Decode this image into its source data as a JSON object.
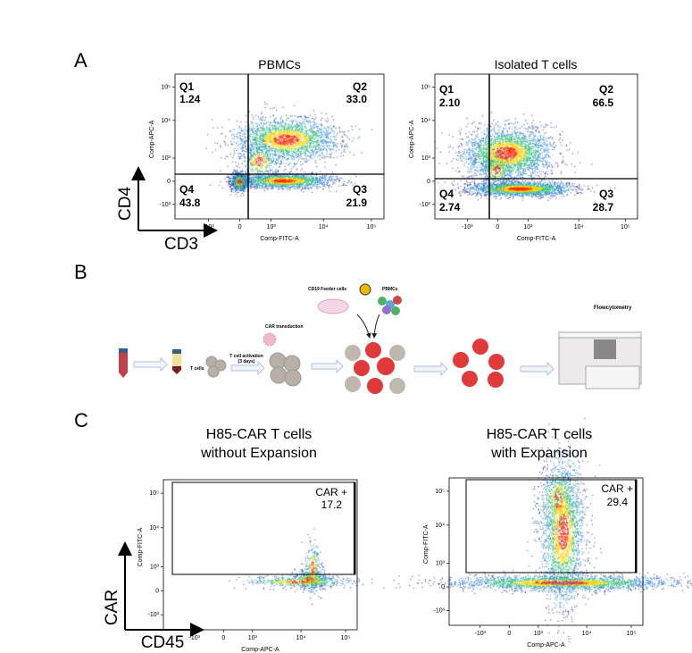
{
  "panels": {
    "a": "A",
    "b": "B",
    "c": "C"
  },
  "panel_a": {
    "marker_y": "CD4",
    "marker_x": "CD3"
  },
  "panel_b": {
    "feeder_label": "CD19 Feeder cells",
    "pbmc_label": "PBMCs",
    "car_transduction": "CAR transduction",
    "t_cells_label": "T cells",
    "activation_label": "T cell activation",
    "activation_days": "(3 days)",
    "flow_label": "Flowcytometry"
  },
  "panel_c": {
    "marker_y": "CAR",
    "marker_x": "CD45"
  },
  "chart_data": [
    {
      "type": "scatter",
      "title": "PBMCs",
      "xlabel": "Comp-FITC-A",
      "ylabel": "Comp-APC-A",
      "xticks": [
        "-10³",
        "0",
        "10³",
        "10⁴",
        "10⁵"
      ],
      "yticks": [
        "10⁵",
        "10⁴",
        "10³",
        "0",
        "-10³"
      ],
      "quadrants": [
        {
          "name": "Q1",
          "value": "1.24"
        },
        {
          "name": "Q2",
          "value": "33.0"
        },
        {
          "name": "Q3",
          "value": "21.9"
        },
        {
          "name": "Q4",
          "value": "43.8"
        }
      ]
    },
    {
      "type": "scatter",
      "title": "Isolated T cells",
      "xlabel": "Comp-FITC-A",
      "ylabel": "Comp-APC-A",
      "xticks": [
        "-10³",
        "0",
        "10³",
        "10⁴",
        "10⁵"
      ],
      "yticks": [
        "10⁵",
        "10⁴",
        "10³",
        "0",
        "-10³"
      ],
      "quadrants": [
        {
          "name": "Q1",
          "value": "2.10"
        },
        {
          "name": "Q2",
          "value": "66.5"
        },
        {
          "name": "Q3",
          "value": "28.7"
        },
        {
          "name": "Q4",
          "value": "2.74"
        }
      ]
    },
    {
      "type": "scatter",
      "title_line1": "H85-CAR T cells",
      "title_line2": "without Expansion",
      "xlabel": "Comp-APC-A",
      "ylabel": "Comp-FITC-A",
      "xticks": [
        "-10³",
        "0",
        "10³",
        "10⁴",
        "10⁵"
      ],
      "yticks": [
        "10⁵",
        "10⁴",
        "10³",
        "0",
        "-10³"
      ],
      "gate": {
        "name": "CAR +",
        "value": "17.2"
      }
    },
    {
      "type": "scatter",
      "title_line1": "H85-CAR T cells",
      "title_line2": "with Expansion",
      "xlabel": "Comp-APC-A",
      "ylabel": "Comp-FITC-A",
      "xticks": [
        "-10³",
        "0",
        "10³",
        "10⁴",
        "10⁵"
      ],
      "yticks": [
        "10⁵",
        "10⁴",
        "10³",
        "0",
        "-10³"
      ],
      "gate": {
        "name": "CAR +",
        "value": "29.4"
      }
    }
  ]
}
